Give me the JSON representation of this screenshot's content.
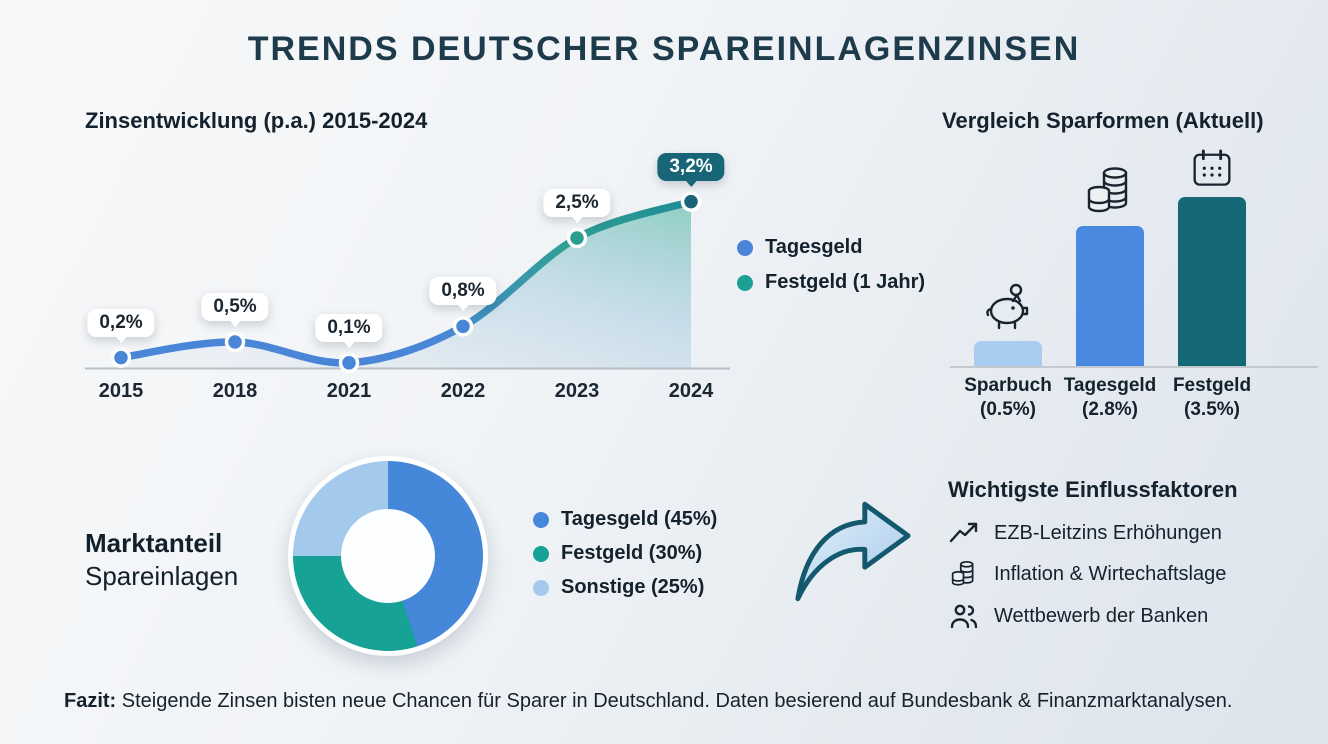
{
  "title": "TRENDS DEUTSCHER SPAREINLAGENZINSEN",
  "line_chart": {
    "title": "Zinsentwicklung (p.a.) 2015-2024",
    "legend": [
      {
        "label": "Tagesgeld",
        "color": "#4a86d8"
      },
      {
        "label": "Festgeld (1 Jahr)",
        "color": "#1ba092"
      }
    ]
  },
  "chart_data": [
    {
      "type": "area",
      "title": "Zinsentwicklung (p.a.) 2015-2024",
      "categories": [
        "2015",
        "2018",
        "2021",
        "2022",
        "2023",
        "2024"
      ],
      "values": [
        0.2,
        0.5,
        0.1,
        0.8,
        2.5,
        3.2
      ],
      "labels": [
        "0,2%",
        "0,5%",
        "0,1%",
        "0,8%",
        "2,5%",
        "3,2%"
      ],
      "unit": "% p.a.",
      "ylim": [
        0,
        3.5
      ],
      "grid": false,
      "legend": [
        "Tagesgeld",
        "Festgeld (1 Jahr)"
      ],
      "point_colors": [
        "#4a86d8",
        "#4a86d8",
        "#4a86d8",
        "#4a86d8",
        "#2a9d8f",
        "#176577"
      ],
      "highlight_index": 5
    },
    {
      "type": "bar",
      "title": "Vergleich Sparformen (Aktuell)",
      "categories": [
        "Sparbuch",
        "Tagesgeld",
        "Festgeld"
      ],
      "values": [
        0.5,
        2.8,
        3.5
      ],
      "labels": [
        "(0.5%)",
        "(2.8%)",
        "(3.5%)"
      ],
      "colors": [
        "#a9cdf1",
        "#4a89e0",
        "#156878"
      ],
      "icons": [
        "piggy-bank",
        "coins",
        "calendar"
      ],
      "ylim": [
        0,
        4
      ]
    },
    {
      "type": "pie",
      "title": "Marktanteil Spareinlagen",
      "categories": [
        "Tagesgeld",
        "Festgeld",
        "Sonstige"
      ],
      "values": [
        45,
        30,
        25
      ],
      "labels": [
        "Tagesgeld (45%)",
        "Festgeld (30%)",
        "Sonstige (25%)"
      ],
      "colors": [
        "#4587d8",
        "#16a294",
        "#a3c9ec"
      ]
    }
  ],
  "market": {
    "line1": "Marktanteil",
    "line2": "Spareinlagen"
  },
  "factors": {
    "title": "Wichtigste Einflussfaktoren",
    "items": [
      {
        "icon": "trending-up-icon",
        "label": "EZB-Leitzins Erhöhungen"
      },
      {
        "icon": "coins-icon",
        "label": "Inflation & Wirtechaftslage"
      },
      {
        "icon": "people-icon",
        "label": "Wettbewerb der Banken"
      }
    ]
  },
  "footer": {
    "prefix": "Fazit:",
    "text": " Steigende Zinsen bisten neue Chancen für Sparer in Deutschland. Daten besierend auf Bundesbank & Finanzmarktanalysen."
  }
}
